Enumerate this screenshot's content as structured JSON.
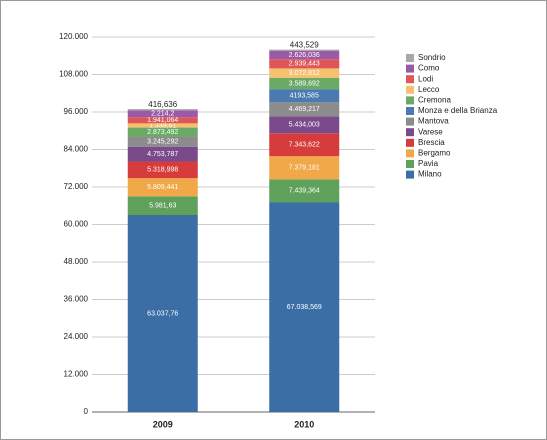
{
  "chart_data": {
    "type": "stacked_bar",
    "categories": [
      "2009",
      "2010"
    ],
    "ylim": [
      0,
      120000
    ],
    "yticks": [
      0,
      {
        "value": 12000,
        "label": "12.000"
      },
      {
        "value": 24000,
        "label": "24.000"
      },
      {
        "value": 36000,
        "label": "36.000"
      },
      {
        "value": 48000,
        "label": "48.000"
      },
      {
        "value": 60000,
        "label": "60.000"
      },
      {
        "value": 72000,
        "label": "72.000"
      },
      {
        "value": 84000,
        "label": "84.000"
      },
      {
        "value": 96000,
        "label": "96.000"
      },
      {
        "value": 108000,
        "label": "108.000"
      },
      {
        "value": 120000,
        "label": "120.000"
      }
    ],
    "grid": true,
    "legend": "right",
    "series": [
      {
        "name": "Milano",
        "color": "#3a6ea5",
        "values": [
          63037.76,
          67038.569
        ],
        "value_labels": [
          "63.037,76",
          "67.038,569"
        ]
      },
      {
        "name": "Pavia",
        "color": "#5fa05a",
        "values": [
          5981.63,
          7439.364
        ],
        "value_labels": [
          "5.981,63",
          "7.439,364"
        ]
      },
      {
        "name": "Bergamo",
        "color": "#f0a848",
        "values": [
          5809.441,
          7379.181
        ],
        "value_labels": [
          "5.809,441",
          "7.379,181"
        ]
      },
      {
        "name": "Brescia",
        "color": "#d63c3c",
        "values": [
          5318.998,
          7343.622
        ],
        "value_labels": [
          "5.318,998",
          "7.343,622"
        ]
      },
      {
        "name": "Varese",
        "color": "#7a4a8a",
        "values": [
          4753.787,
          5434.003
        ],
        "value_labels": [
          "4.753,787",
          "5.434,003"
        ]
      },
      {
        "name": "Mantova",
        "color": "#8c8c8c",
        "values": [
          3245.292,
          4469.217
        ],
        "value_labels": [
          "3.245,292",
          "4.469,217"
        ]
      },
      {
        "name": "Monza e della Brianza",
        "color": "#4a7ab0",
        "values": [
          null,
          4193.585
        ],
        "value_labels": [
          null,
          "4193,585"
        ]
      },
      {
        "name": "Cremona",
        "color": "#6aaa64",
        "values": [
          2873.492,
          3589.692
        ],
        "value_labels": [
          "2.873,492",
          "3.589,692"
        ]
      },
      {
        "name": "Lecco",
        "color": "#f5c070",
        "values": [
          1339.61,
          3072.812
        ],
        "value_labels": [
          "1.339,61",
          "3.072,812"
        ]
      },
      {
        "name": "Lodi",
        "color": "#e05555",
        "values": [
          1941.064,
          2939.443
        ],
        "value_labels": [
          "1.941,064",
          "2.939,443"
        ]
      },
      {
        "name": "Como",
        "color": "#9a5aa5",
        "values": [
          2214.2,
          2626.036
        ],
        "value_labels": [
          "2.214,2",
          "2.626,036"
        ]
      },
      {
        "name": "Sondrio",
        "color": "#a8a8a8",
        "values": [
          416.636,
          443.529
        ],
        "value_labels": [
          "416,636",
          "443,529"
        ]
      }
    ]
  }
}
